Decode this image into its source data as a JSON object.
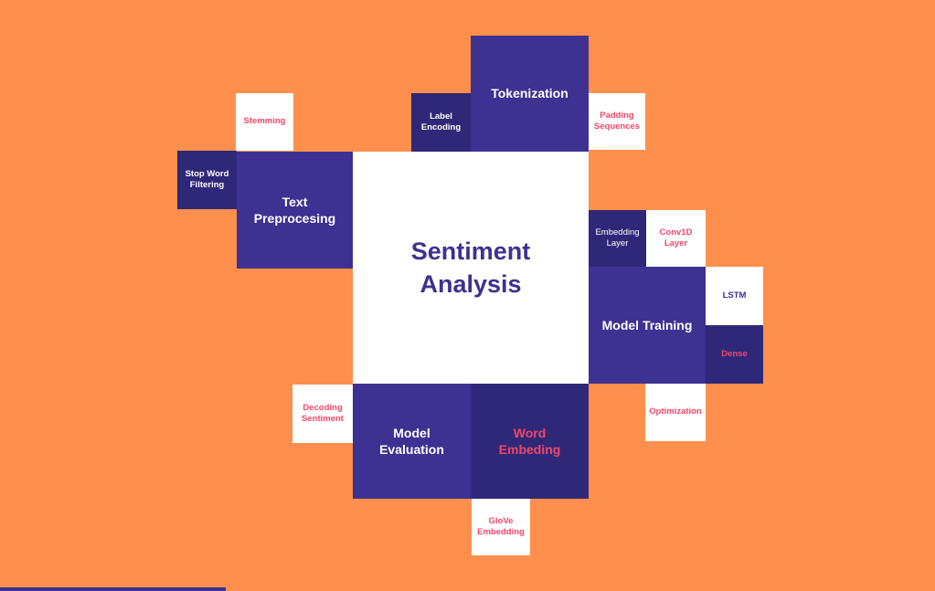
{
  "center": "Sentiment\nAnalysis",
  "main_topics": {
    "tokenization": "Tokenization",
    "text_preprocessing": "Text\nPreprocesing",
    "model_training": "Model Training",
    "model_evaluation": "Model\nEvaluation",
    "word_embedding": "Word\nEmbeding"
  },
  "subtopics": {
    "label_encoding": "Label\nEncoding",
    "padding_sequences": "Padding\nSequences",
    "stemming": "Stemming",
    "stop_word_filtering": "Stop Word\nFiltering",
    "embedding_layer": "Embedding\nLayer",
    "conv1d_layer": "Conv1D\nLayer",
    "lstm": "LSTM",
    "dense": "Dense",
    "optimization": "Optimization",
    "decoding_sentiment": "Decoding\nSentiment",
    "glove_embedding": "GloVe\nEmbedding"
  },
  "colors": {
    "background": "#FF8F4C",
    "indigo": "#3D3192",
    "dark_indigo": "#2F2878",
    "accent_red": "#F0476A",
    "white": "#FFFFFF"
  }
}
